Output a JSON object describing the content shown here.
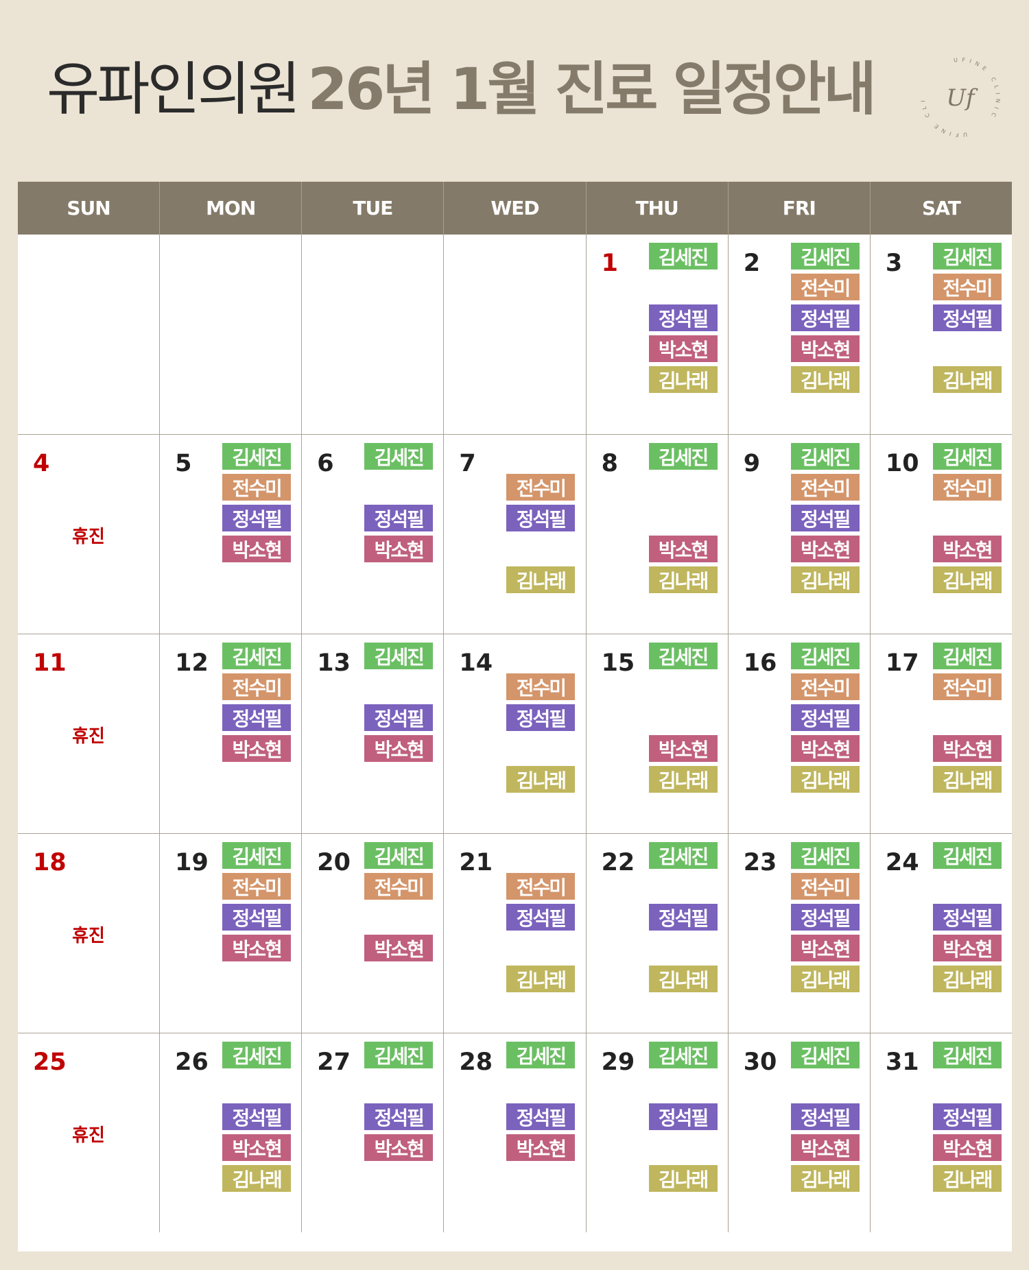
{
  "title": {
    "clinic": "유파인의원",
    "schedule": "26년 1월 진료 일정안내"
  },
  "logo": {
    "text": "UFINE CLINIC",
    "mark": "Uf"
  },
  "weekdays": [
    "SUN",
    "MON",
    "TUE",
    "WED",
    "THU",
    "FRI",
    "SAT"
  ],
  "closed_label": "휴진",
  "colors": {
    "header": "#847a69",
    "background": "#ebe3d4",
    "sunday": "#c00000"
  },
  "doctors": [
    {
      "name": "김세진",
      "color": "#6bbf63"
    },
    {
      "name": "전수미",
      "color": "#d4956a"
    },
    {
      "name": "정석필",
      "color": "#7b62bd"
    },
    {
      "name": "박소현",
      "color": "#c0607e"
    },
    {
      "name": "김나래",
      "color": "#bfb65e"
    }
  ],
  "weeks": [
    [
      null,
      null,
      null,
      null,
      {
        "day": "1",
        "red": true,
        "docs": [
          0,
          2,
          3,
          4
        ]
      },
      {
        "day": "2",
        "docs": [
          0,
          1,
          2,
          3,
          4
        ]
      },
      {
        "day": "3",
        "docs": [
          0,
          1,
          2,
          4
        ]
      }
    ],
    [
      {
        "day": "4",
        "red": true,
        "closed": true
      },
      {
        "day": "5",
        "docs": [
          0,
          1,
          2,
          3
        ]
      },
      {
        "day": "6",
        "docs": [
          0,
          2,
          3
        ]
      },
      {
        "day": "7",
        "docs": [
          1,
          2,
          4
        ]
      },
      {
        "day": "8",
        "docs": [
          0,
          3,
          4
        ]
      },
      {
        "day": "9",
        "docs": [
          0,
          1,
          2,
          3,
          4
        ]
      },
      {
        "day": "10",
        "docs": [
          0,
          1,
          3,
          4
        ]
      }
    ],
    [
      {
        "day": "11",
        "red": true,
        "closed": true
      },
      {
        "day": "12",
        "docs": [
          0,
          1,
          2,
          3
        ]
      },
      {
        "day": "13",
        "docs": [
          0,
          2,
          3
        ]
      },
      {
        "day": "14",
        "docs": [
          1,
          2,
          4
        ]
      },
      {
        "day": "15",
        "docs": [
          0,
          3,
          4
        ]
      },
      {
        "day": "16",
        "docs": [
          0,
          1,
          2,
          3,
          4
        ]
      },
      {
        "day": "17",
        "docs": [
          0,
          1,
          3,
          4
        ]
      }
    ],
    [
      {
        "day": "18",
        "red": true,
        "closed": true
      },
      {
        "day": "19",
        "docs": [
          0,
          1,
          2,
          3
        ]
      },
      {
        "day": "20",
        "docs": [
          0,
          1,
          3
        ]
      },
      {
        "day": "21",
        "docs": [
          1,
          2,
          4
        ]
      },
      {
        "day": "22",
        "docs": [
          0,
          2,
          4
        ]
      },
      {
        "day": "23",
        "docs": [
          0,
          1,
          2,
          3,
          4
        ]
      },
      {
        "day": "24",
        "docs": [
          0,
          2,
          3,
          4
        ]
      }
    ],
    [
      {
        "day": "25",
        "red": true,
        "closed": true
      },
      {
        "day": "26",
        "docs": [
          0,
          2,
          3,
          4
        ]
      },
      {
        "day": "27",
        "docs": [
          0,
          2,
          3
        ]
      },
      {
        "day": "28",
        "docs": [
          0,
          2,
          3
        ]
      },
      {
        "day": "29",
        "docs": [
          0,
          2,
          4
        ]
      },
      {
        "day": "30",
        "docs": [
          0,
          2,
          3,
          4
        ]
      },
      {
        "day": "31",
        "docs": [
          0,
          2,
          3,
          4
        ]
      }
    ]
  ]
}
